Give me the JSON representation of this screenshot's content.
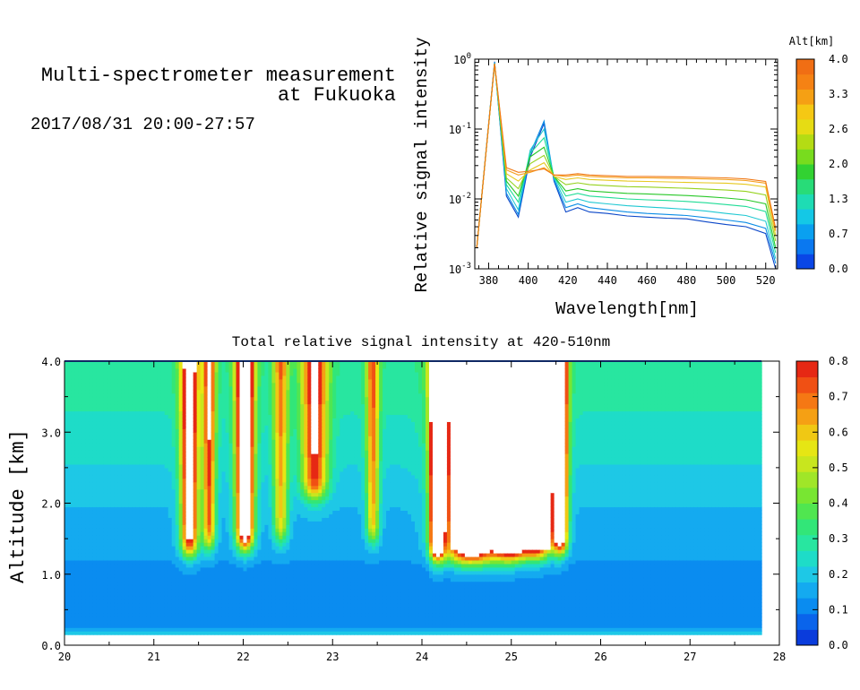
{
  "header": {
    "title_line1": "Multi-spectrometer measurement",
    "title_line2": "at Fukuoka",
    "time_range": "2017/08/31 20:00-27:57"
  },
  "chart_data": [
    {
      "type": "line",
      "xlabel": "Wavelength[nm]",
      "ylabel": "Relative signal intensity",
      "yscale": "log",
      "xlim": [
        373,
        526
      ],
      "ylim": [
        0.001,
        1
      ],
      "x_ticks": [
        380,
        400,
        420,
        440,
        460,
        480,
        500,
        520
      ],
      "y_ticks": [
        {
          "base": "10",
          "exp": "0",
          "value": 1
        },
        {
          "base": "10",
          "exp": "-1",
          "value": 0.1
        },
        {
          "base": "10",
          "exp": "-2",
          "value": 0.01
        },
        {
          "base": "10",
          "exp": "-3",
          "value": 0.001
        }
      ],
      "x": [
        374,
        383,
        389,
        395,
        401,
        408,
        413,
        419,
        425,
        431,
        440,
        450,
        460,
        470,
        480,
        490,
        500,
        510,
        520,
        525
      ],
      "series": [
        {
          "alt": 0.3,
          "color": "#0a46c8",
          "values": [
            0.002,
            0.92,
            0.011,
            0.0055,
            0.04,
            0.12,
            0.018,
            0.0065,
            0.0075,
            0.0065,
            0.0062,
            0.0057,
            0.0055,
            0.0053,
            0.0052,
            0.0047,
            0.0043,
            0.004,
            0.0032,
            0.001
          ]
        },
        {
          "alt": 0.7,
          "color": "#0a8ce6",
          "values": [
            0.002,
            0.9,
            0.012,
            0.006,
            0.045,
            0.13,
            0.019,
            0.0075,
            0.0085,
            0.0075,
            0.007,
            0.0065,
            0.0062,
            0.006,
            0.0058,
            0.0054,
            0.005,
            0.0046,
            0.0038,
            0.0012
          ]
        },
        {
          "alt": 1.0,
          "color": "#1ec8d2",
          "values": [
            0.002,
            0.88,
            0.014,
            0.007,
            0.05,
            0.1,
            0.02,
            0.009,
            0.01,
            0.009,
            0.0085,
            0.008,
            0.0077,
            0.0074,
            0.0071,
            0.0067,
            0.0062,
            0.0058,
            0.0048,
            0.0014
          ]
        },
        {
          "alt": 1.5,
          "color": "#1edc96",
          "values": [
            0.002,
            0.87,
            0.016,
            0.009,
            0.045,
            0.075,
            0.021,
            0.011,
            0.012,
            0.011,
            0.0105,
            0.01,
            0.0097,
            0.0095,
            0.0092,
            0.0088,
            0.0083,
            0.0078,
            0.0066,
            0.0017
          ]
        },
        {
          "alt": 1.8,
          "color": "#28c828",
          "values": [
            0.002,
            0.86,
            0.018,
            0.011,
            0.04,
            0.055,
            0.021,
            0.013,
            0.014,
            0.013,
            0.0125,
            0.012,
            0.0118,
            0.0115,
            0.0112,
            0.0108,
            0.0103,
            0.0097,
            0.0085,
            0.002
          ]
        },
        {
          "alt": 2.3,
          "color": "#96d21e",
          "values": [
            0.002,
            0.86,
            0.02,
            0.014,
            0.032,
            0.042,
            0.021,
            0.016,
            0.017,
            0.016,
            0.0155,
            0.015,
            0.0148,
            0.0145,
            0.0142,
            0.0138,
            0.0134,
            0.0128,
            0.0114,
            0.0025
          ]
        },
        {
          "alt": 3.0,
          "color": "#e6c81e",
          "values": [
            0.002,
            0.86,
            0.023,
            0.018,
            0.026,
            0.033,
            0.021,
            0.019,
            0.02,
            0.019,
            0.0185,
            0.018,
            0.0178,
            0.0175,
            0.0172,
            0.017,
            0.0168,
            0.0162,
            0.0148,
            0.003
          ]
        },
        {
          "alt": 3.5,
          "color": "#f5a01e",
          "values": [
            0.002,
            0.86,
            0.026,
            0.022,
            0.024,
            0.028,
            0.022,
            0.021,
            0.022,
            0.021,
            0.0205,
            0.02,
            0.02,
            0.0198,
            0.0196,
            0.0193,
            0.019,
            0.0183,
            0.0168,
            0.0035
          ]
        },
        {
          "alt": 3.9,
          "color": "#f07814",
          "values": [
            0.002,
            0.86,
            0.028,
            0.024,
            0.025,
            0.027,
            0.022,
            0.022,
            0.023,
            0.022,
            0.0215,
            0.021,
            0.021,
            0.0208,
            0.0206,
            0.0203,
            0.02,
            0.0193,
            0.0178,
            0.0038
          ]
        }
      ],
      "colorbar": {
        "label": "Alt[km]",
        "ticks": [
          "0.0",
          "0.7",
          "1.3",
          "2.0",
          "2.6",
          "3.3",
          "4.0"
        ],
        "colors": [
          "#0a46e6",
          "#0a78f0",
          "#0aa0f0",
          "#14c8e6",
          "#1edcb4",
          "#28dc78",
          "#32d232",
          "#78dc1e",
          "#b4dc14",
          "#e6dc14",
          "#f5c814",
          "#f5a014",
          "#f58214",
          "#f06e14"
        ]
      }
    },
    {
      "type": "heatmap",
      "title": "Total relative signal intensity at 420-510nm",
      "xlabel": "",
      "ylabel": "Altitude [km]",
      "xlim": [
        20,
        28
      ],
      "ylim": [
        0,
        4
      ],
      "x_ticks": [
        "20",
        "21",
        "22",
        "23",
        "24",
        "25",
        "26",
        "27",
        "28"
      ],
      "y_ticks": [
        "0.0",
        "1.0",
        "2.0",
        "3.0",
        "4.0"
      ],
      "data_time_range": [
        20.0,
        27.8
      ],
      "data_alt_range": [
        0.15,
        4.0
      ],
      "background_profile": [
        {
          "alt": 0.15,
          "value": 0.24
        },
        {
          "alt": 0.2,
          "value": 0.16
        },
        {
          "alt": 0.35,
          "value": 0.1
        },
        {
          "alt": 0.7,
          "value": 0.11
        },
        {
          "alt": 1.1,
          "value": 0.12
        },
        {
          "alt": 1.3,
          "value": 0.15
        },
        {
          "alt": 2.0,
          "value": 0.18
        },
        {
          "alt": 2.5,
          "value": 0.22
        },
        {
          "alt": 3.0,
          "value": 0.25
        },
        {
          "alt": 3.5,
          "value": 0.28
        },
        {
          "alt": 3.95,
          "value": 0.3
        }
      ],
      "features": [
        {
          "t": 21.4,
          "w": 0.1,
          "base": 1.3,
          "peak": 0.72
        },
        {
          "t": 21.62,
          "w": 0.07,
          "base": 1.4,
          "peak": 0.55
        },
        {
          "t": 22.02,
          "w": 0.1,
          "base": 1.4,
          "peak": 0.9
        },
        {
          "t": 22.42,
          "w": 0.08,
          "base": 1.5,
          "peak": 0.42
        },
        {
          "t": 22.8,
          "w": 0.14,
          "base": 2.1,
          "peak": 0.58
        },
        {
          "t": 23.45,
          "w": 0.07,
          "base": 1.5,
          "peak": 0.45
        },
        {
          "t": 24.17,
          "w": 0.08,
          "base": 1.25,
          "peak": 0.95
        },
        {
          "t": 24.55,
          "w": 0.3,
          "base": 1.2,
          "peak": 0.95
        },
        {
          "t": 25.0,
          "w": 0.2,
          "base": 1.25,
          "peak": 0.95
        },
        {
          "t": 25.3,
          "w": 0.16,
          "base": 1.3,
          "peak": 0.95
        },
        {
          "t": 25.55,
          "w": 0.08,
          "base": 1.35,
          "peak": 0.9
        }
      ],
      "saturated_region": {
        "t_start": 24.3,
        "t_end": 25.45,
        "floor_km": 1.35
      },
      "colorbar": {
        "ticks": [
          "0.0",
          "0.1",
          "0.2",
          "0.3",
          "0.4",
          "0.5",
          "0.6",
          "0.7",
          "0.8"
        ],
        "range": [
          0,
          0.8
        ],
        "colors": [
          "#0a3cdc",
          "#0a64eb",
          "#0a8cf0",
          "#14aaf0",
          "#1ec8e6",
          "#1edcc8",
          "#28e6a0",
          "#32e678",
          "#50e650",
          "#78e632",
          "#a0e628",
          "#c8e61e",
          "#e6e614",
          "#f0c814",
          "#f5a014",
          "#f57814",
          "#f05014",
          "#e62814"
        ]
      }
    }
  ]
}
